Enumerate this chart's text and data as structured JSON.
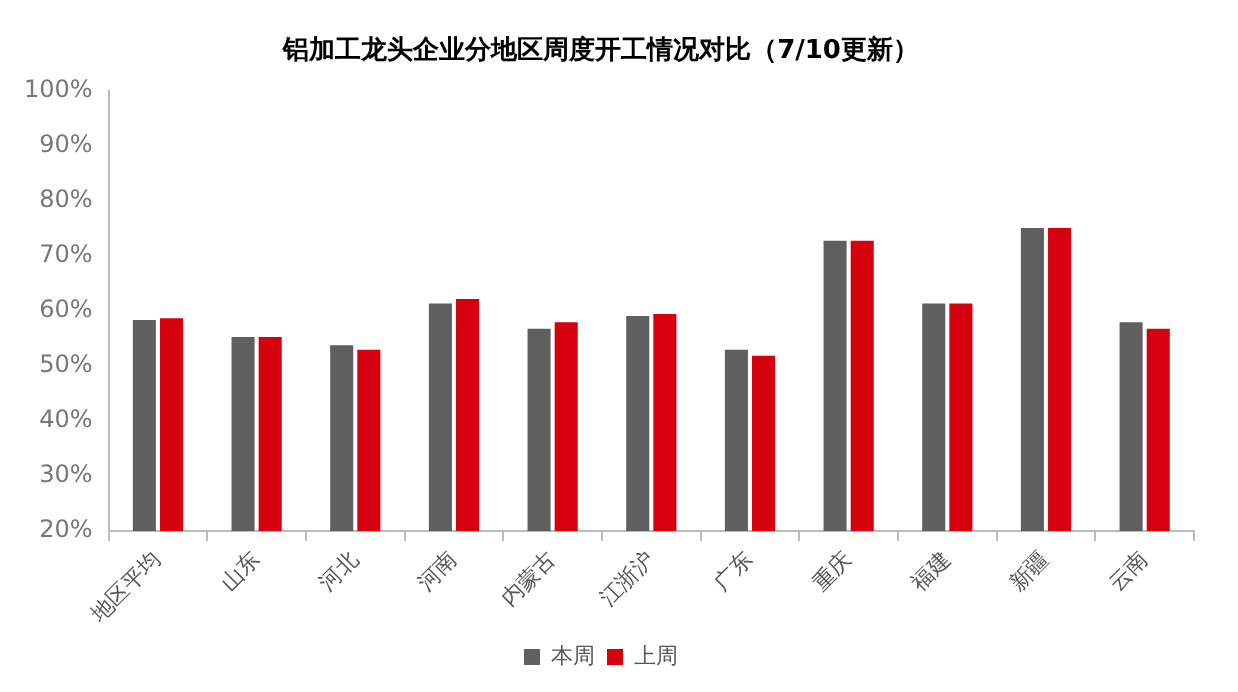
{
  "chart_data": {
    "type": "bar",
    "title": "铝加工龙头企业分地区周度开工情况对比（7/10更新）",
    "categories": [
      "地区平均",
      "山东",
      "河北",
      "河南",
      "内蒙古",
      "江浙沪",
      "广东",
      "重庆",
      "福建",
      "新疆",
      "云南"
    ],
    "series": [
      {
        "name": "本周",
        "color": "#5f5f5f",
        "values": [
          58.4,
          55.3,
          53.8,
          61.4,
          56.8,
          59.1,
          53.0,
          72.8,
          61.4,
          75.1,
          58.0
        ]
      },
      {
        "name": "上周",
        "color": "#d7000f",
        "values": [
          58.7,
          55.3,
          53.0,
          62.2,
          58.0,
          59.5,
          51.9,
          72.8,
          61.4,
          75.1,
          56.8
        ]
      }
    ],
    "ylim": [
      20,
      100
    ],
    "yticks": [
      {
        "value": 20,
        "label": "20%"
      },
      {
        "value": 30,
        "label": "30%"
      },
      {
        "value": 40,
        "label": "40%"
      },
      {
        "value": 50,
        "label": "50%"
      },
      {
        "value": 60,
        "label": "60%"
      },
      {
        "value": 70,
        "label": "70%"
      },
      {
        "value": 80,
        "label": "80%"
      },
      {
        "value": 90,
        "label": "90%"
      },
      {
        "value": 100,
        "label": "100%"
      }
    ],
    "grid": false,
    "legend": "bottom"
  }
}
